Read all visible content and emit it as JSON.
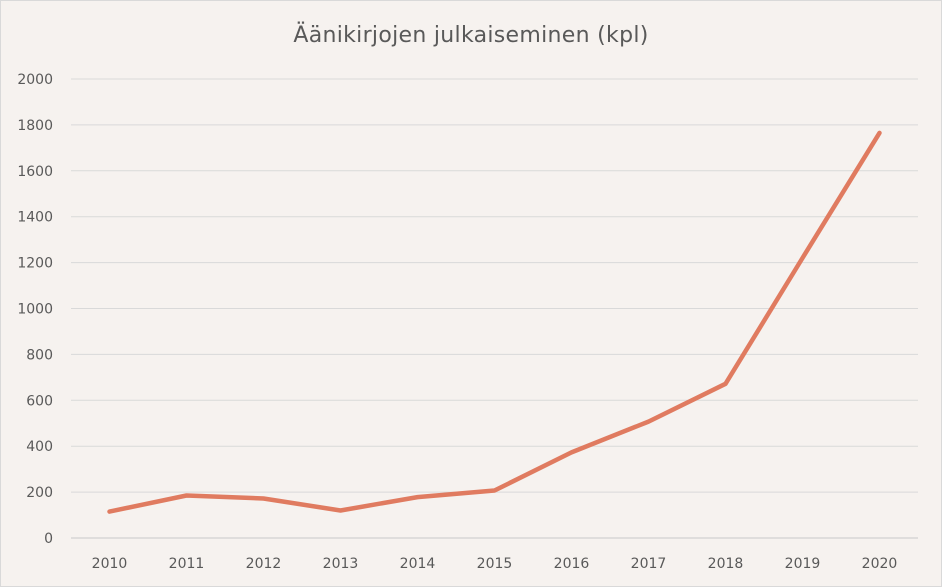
{
  "chart_data": {
    "type": "line",
    "title": "Äänikirjojen julkaiseminen (kpl)",
    "xlabel": "",
    "ylabel": "",
    "categories": [
      "2010",
      "2011",
      "2012",
      "2013",
      "2014",
      "2015",
      "2016",
      "2017",
      "2018",
      "2019",
      "2020"
    ],
    "series": [
      {
        "values": [
          115,
          185,
          172,
          120,
          178,
          207,
          373,
          507,
          672,
          1220,
          1765
        ],
        "color": "#e07b60"
      }
    ],
    "ylim": [
      0,
      2000
    ],
    "yticks": [
      "0",
      "200",
      "400",
      "600",
      "800",
      "1000",
      "1200",
      "1400",
      "1600",
      "1800",
      "2000"
    ],
    "grid": true,
    "legend": "none"
  }
}
